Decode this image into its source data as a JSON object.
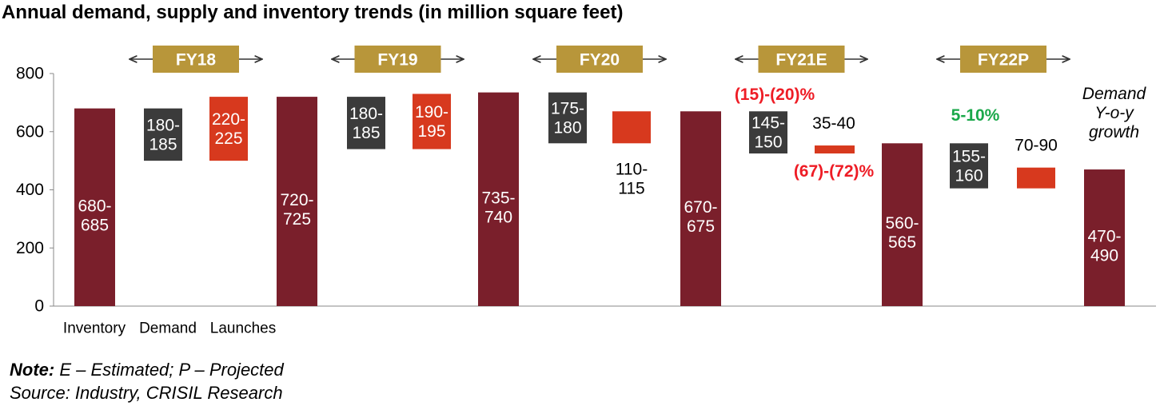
{
  "chart_data": {
    "type": "bar",
    "title": "Annual demand, supply and inventory trends (in million square feet)",
    "ylim": [
      0,
      800
    ],
    "yticks": [
      0,
      200,
      400,
      600,
      800
    ],
    "grid": false,
    "legend_labels": [
      "Inventory",
      "Demand",
      "Launches"
    ],
    "colors": {
      "inventory": "#7a1f2b",
      "demand": "#3b3b3b",
      "launches": "#d7391e",
      "period_box": "#b8963a",
      "negative_text": "#ee1c25",
      "positive_text": "#1aa84a"
    },
    "periods": [
      {
        "label": "FY18",
        "demand": [
          180,
          185
        ],
        "demand_label": "180-\n185",
        "launches": [
          220,
          225
        ],
        "launches_label": "220-\n225",
        "growth_label": "",
        "launch_growth_label": ""
      },
      {
        "label": "FY19",
        "demand": [
          180,
          185
        ],
        "demand_label": "180-\n185",
        "launches": [
          190,
          195
        ],
        "launches_label": "190-\n195",
        "growth_label": "",
        "launch_growth_label": ""
      },
      {
        "label": "FY20",
        "demand": [
          175,
          180
        ],
        "demand_label": "175-\n180",
        "launches": [
          110,
          115
        ],
        "launches_label": "110-\n115",
        "growth_label": "",
        "launch_growth_label": ""
      },
      {
        "label": "FY21E",
        "demand": [
          145,
          150
        ],
        "demand_label": "145-\n150",
        "launches": [
          35,
          40
        ],
        "launches_label": "35-40",
        "growth_label": "(15)-(20)%",
        "launch_growth_label": "(67)-(72)%"
      },
      {
        "label": "FY22P",
        "demand": [
          155,
          160
        ],
        "demand_label": "155-\n160",
        "launches": [
          70,
          90
        ],
        "launches_label": "70-90",
        "growth_label": "5-10%",
        "launch_growth_label": ""
      }
    ],
    "inventory": [
      {
        "range": [
          680,
          685
        ],
        "label": "680-\n685"
      },
      {
        "range": [
          720,
          725
        ],
        "label": "720-\n725"
      },
      {
        "range": [
          735,
          740
        ],
        "label": "735-\n740"
      },
      {
        "range": [
          670,
          675
        ],
        "label": "670-\n675"
      },
      {
        "range": [
          560,
          565
        ],
        "label": "560-\n565"
      },
      {
        "range": [
          470,
          490
        ],
        "label": "470-\n490"
      }
    ],
    "annotation": "Demand\nY-o-y\ngrowth"
  },
  "note": {
    "prefix": "Note:",
    "text": " E – Estimated; P – Projected"
  },
  "source": "Source: Industry, CRISIL Research"
}
